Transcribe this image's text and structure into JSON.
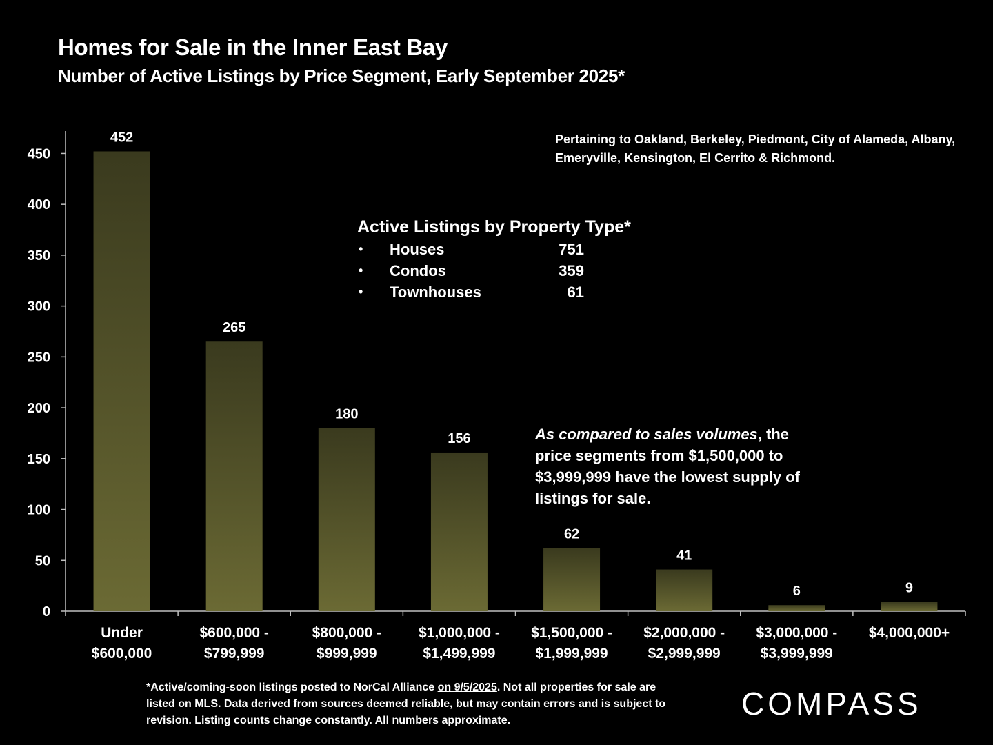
{
  "chart_data": {
    "type": "bar",
    "title": "Homes for Sale in the Inner East Bay",
    "subtitle": "Number of Active Listings by Price Segment, Early September 2025*",
    "categories": [
      [
        "Under",
        "$600,000"
      ],
      [
        "$600,000 -",
        "$799,999"
      ],
      [
        "$800,000 -",
        "$999,999"
      ],
      [
        "$1,000,000 -",
        "$1,499,999"
      ],
      [
        "$1,500,000 -",
        "$1,999,999"
      ],
      [
        "$2,000,000 -",
        "$2,999,999"
      ],
      [
        "$3,000,000 -",
        "$3,999,999"
      ],
      [
        "$4,000,000+"
      ]
    ],
    "values": [
      452,
      265,
      180,
      156,
      62,
      41,
      6,
      9
    ],
    "ylim": [
      0,
      472
    ],
    "yticks": [
      0,
      50,
      100,
      150,
      200,
      250,
      300,
      350,
      400,
      450
    ],
    "xlabel": "",
    "ylabel": "",
    "grid": false,
    "legend": "none",
    "colors": {
      "bar_top": "#3a3a1e",
      "bar_bottom": "#6b6a34",
      "axis": "#bfbfbf"
    }
  },
  "region_note": "Pertaining to Oakland, Berkeley, Piedmont, City of Alameda, Albany, Emeryville, Kensington, El Cerrito & Richmond.",
  "property_types": {
    "title": "Active Listings by Property Type*",
    "items": [
      {
        "bullet": "•",
        "name": "Houses",
        "value": "751"
      },
      {
        "bullet": "•",
        "name": "Condos",
        "value": "359"
      },
      {
        "bullet": "•",
        "name": "Townhouses",
        "value": "61"
      }
    ]
  },
  "comparison": {
    "italic": "As compared to sales volumes",
    "rest": ", the price segments from $1,500,000 to $3,999,999 have the lowest supply of listings for sale."
  },
  "footnote": {
    "prefix": "*Active/coming-soon listings posted to NorCal Alliance ",
    "underlined": "on 9/5/2025",
    "suffix": ". Not all properties for sale are listed on MLS.  Data derived from sources deemed reliable, but may contain errors and is subject to revision. Listing counts change constantly. All numbers approximate."
  },
  "brand": "COMPASS"
}
